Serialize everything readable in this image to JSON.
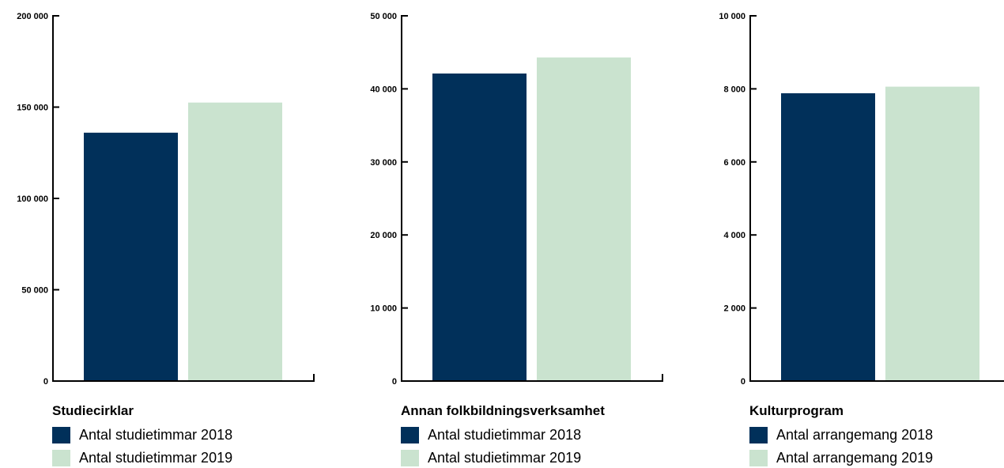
{
  "colors": {
    "series_2018": "#01305a",
    "series_2019": "#cae3cf",
    "axis": "#000000"
  },
  "chart_data": [
    {
      "type": "bar",
      "title": "Studiecirklar",
      "categories": [
        "Studiecirklar"
      ],
      "series": [
        {
          "name": "Antal studietimmar 2018",
          "values": [
            136000
          ]
        },
        {
          "name": "Antal studietimmar 2019",
          "values": [
            152500
          ]
        }
      ],
      "ylim": [
        0,
        200000
      ],
      "yticks": [
        0,
        50000,
        100000,
        150000,
        200000
      ],
      "ytick_labels": [
        "0",
        "50 000",
        "100 000",
        "150 000",
        "200 000"
      ],
      "legend_position": "bottom"
    },
    {
      "type": "bar",
      "title": "Annan folkbildningsverksamhet",
      "categories": [
        "Annan folkbildningsverksamhet"
      ],
      "series": [
        {
          "name": "Antal studietimmar 2018",
          "values": [
            42100
          ]
        },
        {
          "name": "Antal studietimmar 2019",
          "values": [
            44300
          ]
        }
      ],
      "ylim": [
        0,
        50000
      ],
      "yticks": [
        0,
        10000,
        20000,
        30000,
        40000,
        50000
      ],
      "ytick_labels": [
        "0",
        "10 000",
        "20 000",
        "30 000",
        "40 000",
        "50 000"
      ],
      "legend_position": "bottom"
    },
    {
      "type": "bar",
      "title": "Kulturprogram",
      "categories": [
        "Kulturprogram"
      ],
      "series": [
        {
          "name": "Antal arrangemang 2018",
          "values": [
            7880
          ]
        },
        {
          "name": "Antal arrangemang 2019",
          "values": [
            8060
          ]
        }
      ],
      "ylim": [
        0,
        10000
      ],
      "yticks": [
        0,
        2000,
        4000,
        6000,
        8000,
        10000
      ],
      "ytick_labels": [
        "0",
        "2 000",
        "4 000",
        "6 000",
        "8 000",
        "10 000"
      ],
      "legend_position": "bottom"
    }
  ]
}
